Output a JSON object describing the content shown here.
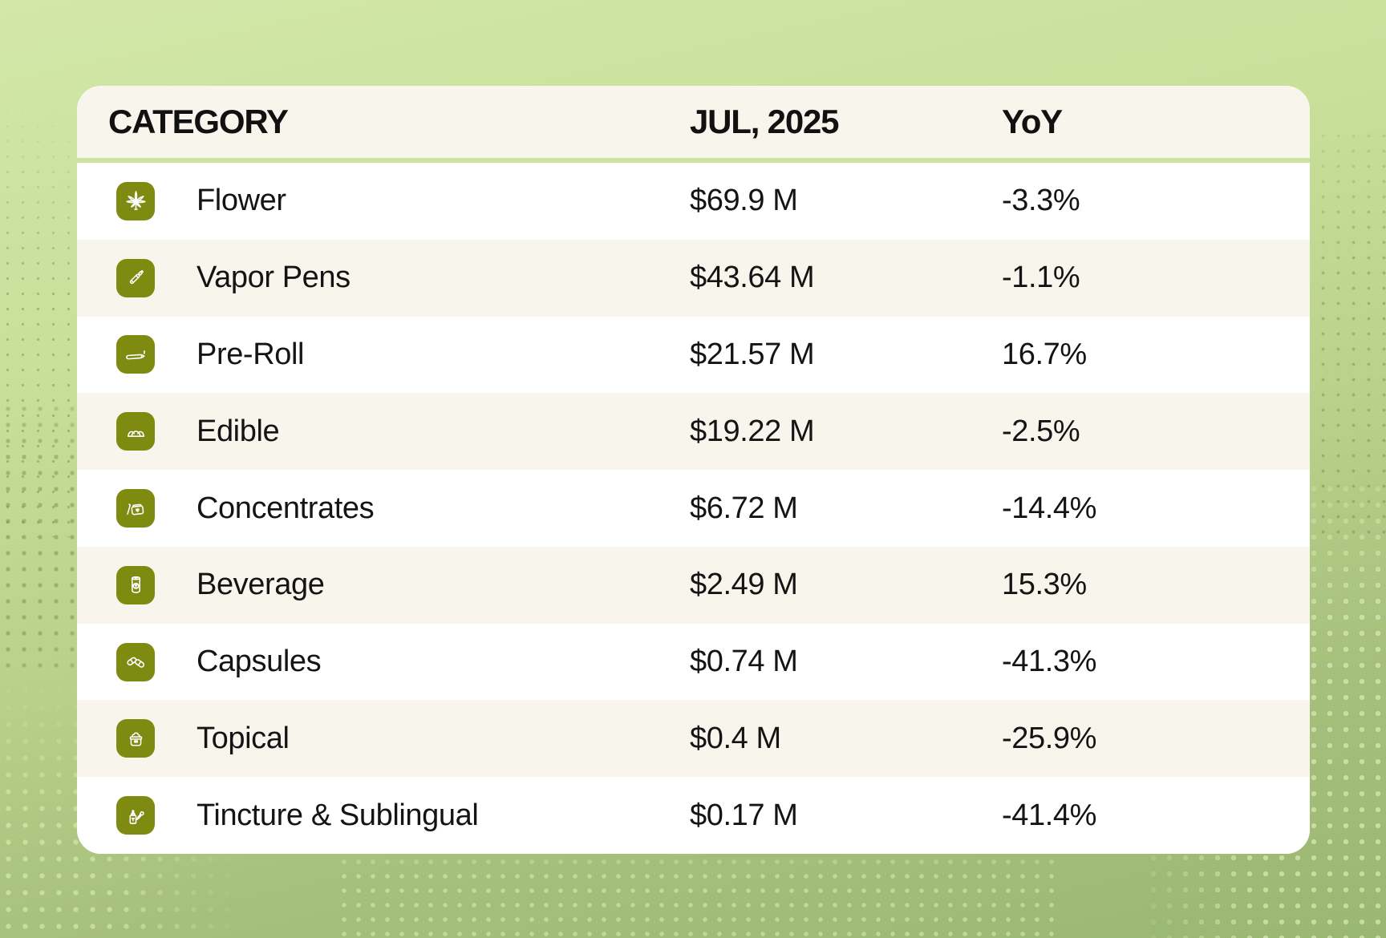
{
  "table": {
    "columns": {
      "category": "CATEGORY",
      "period": "JUL, 2025",
      "yoy": "YoY"
    },
    "rows": [
      {
        "icon": "cannabis-leaf-icon",
        "label": "Flower",
        "value": "$69.9 M",
        "yoy": "-3.3%"
      },
      {
        "icon": "vapor-pen-icon",
        "label": "Vapor Pens",
        "value": "$43.64 M",
        "yoy": "-1.1%"
      },
      {
        "icon": "pre-roll-icon",
        "label": "Pre-Roll",
        "value": "$21.57 M",
        "yoy": "16.7%"
      },
      {
        "icon": "gummy-icon",
        "label": "Edible",
        "value": "$19.22 M",
        "yoy": "-2.5%"
      },
      {
        "icon": "concentrate-jar-icon",
        "label": "Concentrates",
        "value": "$6.72 M",
        "yoy": "-14.4%"
      },
      {
        "icon": "beverage-can-icon",
        "label": "Beverage",
        "value": "$2.49 M",
        "yoy": "15.3%"
      },
      {
        "icon": "capsules-icon",
        "label": "Capsules",
        "value": "$0.74 M",
        "yoy": "-41.3%"
      },
      {
        "icon": "cream-jar-icon",
        "label": "Topical",
        "value": "$0.4 M",
        "yoy": "-25.9%"
      },
      {
        "icon": "tincture-bottle-icon",
        "label": "Tincture & Sublingual",
        "value": "$0.17 M",
        "yoy": "-41.4%"
      }
    ]
  },
  "chart_data": {
    "type": "table",
    "title": "Category sales, JUL 2025 vs YoY",
    "columns": [
      "CATEGORY",
      "JUL, 2025",
      "YoY"
    ],
    "categories": [
      "Flower",
      "Vapor Pens",
      "Pre-Roll",
      "Edible",
      "Concentrates",
      "Beverage",
      "Capsules",
      "Topical",
      "Tincture & Sublingual"
    ],
    "series": [
      {
        "name": "JUL, 2025 sales ($M)",
        "values": [
          69.9,
          43.64,
          21.57,
          19.22,
          6.72,
          2.49,
          0.74,
          0.4,
          0.17
        ]
      },
      {
        "name": "YoY change (%)",
        "values": [
          -3.3,
          -1.1,
          16.7,
          -2.5,
          -14.4,
          15.3,
          -41.3,
          -25.9,
          -41.4
        ]
      }
    ]
  },
  "colors": {
    "icon_olive": "#7e8a10",
    "row_alt": "#f7f5ec",
    "row_white": "#ffffff",
    "header_divider": "#cde49d",
    "background_top": "#d2e7a8",
    "background_bottom": "#9ab771",
    "text": "#141414"
  }
}
